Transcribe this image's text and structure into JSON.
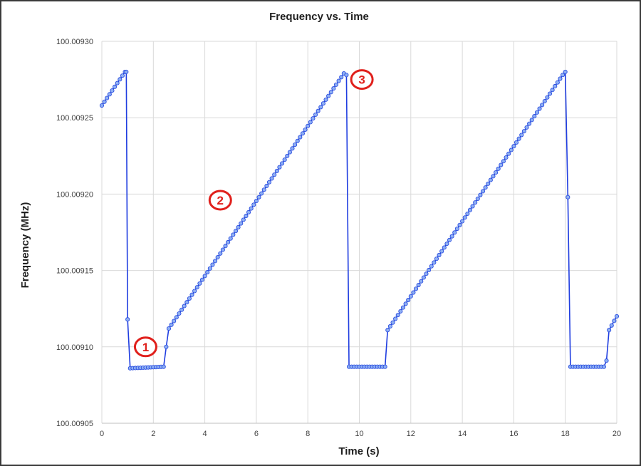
{
  "chart_data": {
    "type": "line",
    "title": "Frequency vs. Time",
    "xlabel": "Time (s)",
    "ylabel": "Frequency (MHz)",
    "xlim": [
      0,
      20
    ],
    "ylim": [
      100.00905,
      100.0093
    ],
    "xticks": [
      "0",
      "2",
      "4",
      "6",
      "8",
      "10",
      "12",
      "14",
      "16",
      "18",
      "20"
    ],
    "yticks": [
      "100.00905",
      "100.00910",
      "100.00915",
      "100.00920",
      "100.00925",
      "100.00930"
    ],
    "grid": true,
    "legend": "none",
    "colors": {
      "line": "#1f3de0",
      "marker_fill": "#8fb0f3",
      "annotation": "#e0201c"
    },
    "series": [
      {
        "segments": [
          {
            "from": [
              0.0,
              100.009258
            ],
            "to": [
              0.9,
              100.00928
            ],
            "step": 0.1
          },
          {
            "from": [
              0.95,
              100.00928
            ],
            "to": [
              0.95,
              100.00928
            ],
            "step": 0.1
          },
          {
            "from": [
              1.0,
              100.009118
            ],
            "to": [
              1.0,
              100.009118
            ],
            "step": 0.1
          },
          {
            "from": [
              1.1,
              100.009086
            ],
            "to": [
              2.4,
              100.009087
            ],
            "step": 0.1
          },
          {
            "from": [
              2.5,
              100.0091
            ],
            "to": [
              2.5,
              100.0091
            ],
            "step": 0.1
          },
          {
            "from": [
              2.6,
              100.009112
            ],
            "to": [
              9.4,
              100.009279
            ],
            "step": 0.1
          },
          {
            "from": [
              9.5,
              100.009278
            ],
            "to": [
              9.5,
              100.009278
            ],
            "step": 0.1
          },
          {
            "from": [
              9.6,
              100.009087
            ],
            "to": [
              11.0,
              100.009087
            ],
            "step": 0.1
          },
          {
            "from": [
              11.1,
              100.009111
            ],
            "to": [
              17.9,
              100.009278
            ],
            "step": 0.1
          },
          {
            "from": [
              18.0,
              100.00928
            ],
            "to": [
              18.0,
              100.00928
            ],
            "step": 0.1
          },
          {
            "from": [
              18.1,
              100.009198
            ],
            "to": [
              18.1,
              100.009198
            ],
            "step": 0.1
          },
          {
            "from": [
              18.2,
              100.009087
            ],
            "to": [
              19.5,
              100.009087
            ],
            "step": 0.1
          },
          {
            "from": [
              19.6,
              100.009091
            ],
            "to": [
              19.6,
              100.009091
            ],
            "step": 0.1
          },
          {
            "from": [
              19.7,
              100.009111
            ],
            "to": [
              20.0,
              100.00912
            ],
            "step": 0.1
          }
        ]
      }
    ],
    "annotations": [
      {
        "label": "1",
        "x": 1.7,
        "y": 100.0091
      },
      {
        "label": "2",
        "x": 4.6,
        "y": 100.009196
      },
      {
        "label": "3",
        "x": 10.1,
        "y": 100.009275
      }
    ]
  }
}
